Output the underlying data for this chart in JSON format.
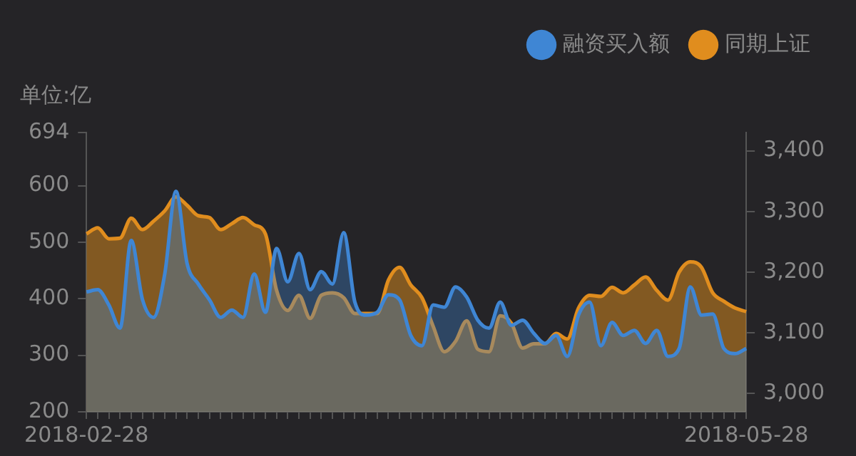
{
  "chart_data": {
    "type": "area",
    "ylabel": "单位:亿",
    "categories": [
      "2018-02-28",
      null,
      null,
      null,
      null,
      null,
      null,
      null,
      null,
      null,
      null,
      null,
      null,
      null,
      null,
      null,
      null,
      null,
      null,
      null,
      null,
      null,
      null,
      null,
      null,
      null,
      null,
      null,
      null,
      null,
      null,
      null,
      null,
      null,
      null,
      null,
      null,
      null,
      null,
      null,
      null,
      null,
      null,
      null,
      null,
      null,
      null,
      null,
      null,
      null,
      null,
      null,
      null,
      null,
      null,
      null,
      null,
      null,
      null,
      "2018-05-28"
    ],
    "series": [
      {
        "name": "融资买入额",
        "color": "#3f86d4",
        "values": [
          412,
          416,
          389,
          348,
          503,
          399,
          367,
          444,
          590,
          462,
          426,
          398,
          367,
          380,
          367,
          444,
          376,
          489,
          430,
          480,
          416,
          448,
          426,
          517,
          394,
          371,
          376,
          407,
          398,
          335,
          317,
          389,
          385,
          421,
          403,
          362,
          348,
          394,
          353,
          362,
          339,
          321,
          335,
          298,
          371,
          394,
          317,
          358,
          335,
          344,
          321,
          344,
          298,
          312,
          421,
          371,
          373,
          312,
          303,
          312
        ]
      },
      {
        "name": "同期上证",
        "color": "#e08d1e",
        "axis": "y2",
        "values": [
          3263,
          3273,
          3255,
          3256,
          3289,
          3270,
          3284,
          3301,
          3324,
          3310,
          3293,
          3290,
          3270,
          3280,
          3290,
          3278,
          3263,
          3170,
          3137,
          3162,
          3124,
          3162,
          3166,
          3158,
          3132,
          3132,
          3132,
          3187,
          3208,
          3179,
          3158,
          3111,
          3069,
          3086,
          3120,
          3073,
          3069,
          3128,
          3116,
          3075,
          3082,
          3082,
          3099,
          3090,
          3141,
          3162,
          3160,
          3175,
          3166,
          3179,
          3192,
          3170,
          3154,
          3200,
          3217,
          3208,
          3166,
          3152,
          3141,
          3135
        ]
      }
    ],
    "ylim": [
      200,
      694
    ],
    "yticks": [
      200,
      300,
      400,
      500,
      600,
      694
    ],
    "y2lim": [
      2970,
      3430
    ],
    "y2ticks": [
      {
        "value": 3000,
        "label": "3,000"
      },
      {
        "value": 3100,
        "label": "3,100"
      },
      {
        "value": 3200,
        "label": "3,200"
      },
      {
        "value": 3300,
        "label": "3,300"
      },
      {
        "value": 3400,
        "label": "3,400"
      }
    ],
    "grid": false,
    "legend": "top right"
  }
}
